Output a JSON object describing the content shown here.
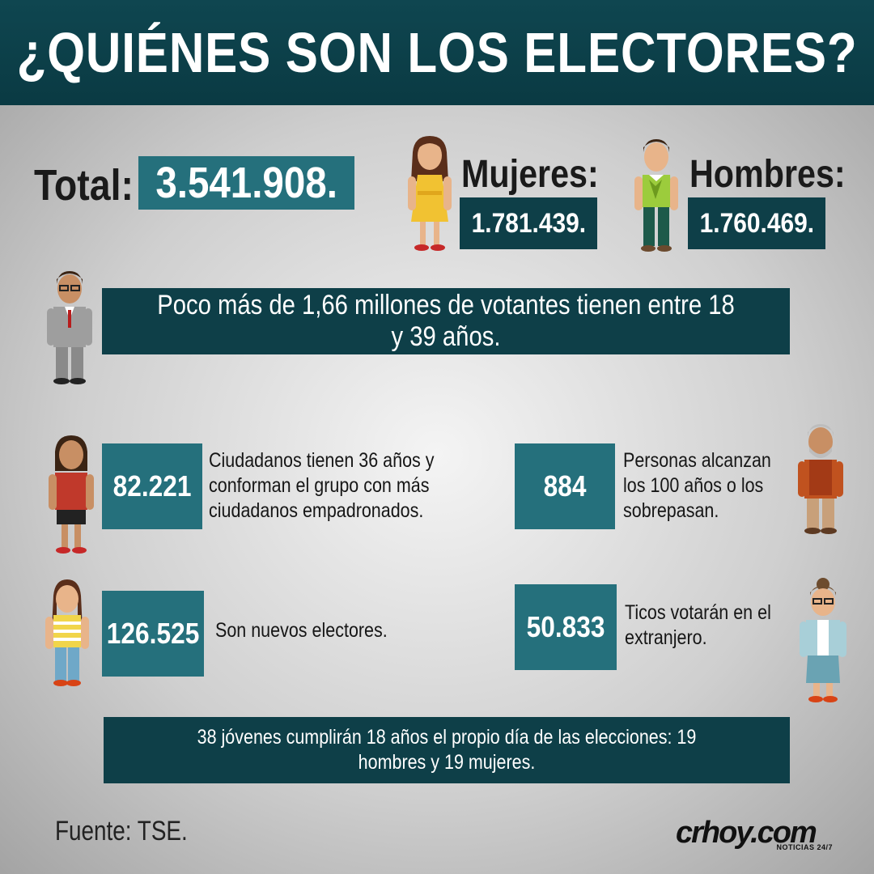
{
  "header": {
    "title": "¿QUIÉNES SON LOS ELECTORES?"
  },
  "total": {
    "label": "Total:",
    "value": "3.541.908."
  },
  "women": {
    "label": "Mujeres:",
    "value": "1.781.439."
  },
  "men": {
    "label": "Hombres:",
    "value": "1.760.469."
  },
  "banner_age": {
    "text": "Poco más de 1,66 millones de votantes tienen entre 18 y 39 años."
  },
  "stats": {
    "age36": {
      "value": "82.221",
      "text": "Ciudadanos tienen 36 años y conforman el grupo con más ciudadanos empadronados."
    },
    "centenarians": {
      "value": "884",
      "text": "Personas alcanzan los 100 años o los sobrepasan."
    },
    "new_voters": {
      "value": "126.525",
      "text": "Son nuevos electores."
    },
    "abroad": {
      "value": "50.833",
      "text": "Ticos votarán en el extranjero."
    }
  },
  "banner_youth": {
    "text": "38 jóvenes cumplirán 18 años el propio día de las elecciones: 19 hombres y 19 mujeres."
  },
  "source": {
    "text": "Fuente: TSE."
  },
  "logo": {
    "main": "crhoy.com",
    "sub": "NOTICIAS 24/7"
  },
  "colors": {
    "header": "#0a3a43",
    "teal_box": "#25707c",
    "dark_box": "#0e3f48"
  },
  "icons": [
    "woman-yellow-dress-icon",
    "boy-green-sweater-icon",
    "man-suit-icon",
    "woman-red-top-icon",
    "elderly-man-icon",
    "girl-striped-top-icon",
    "woman-blue-jacket-icon"
  ]
}
